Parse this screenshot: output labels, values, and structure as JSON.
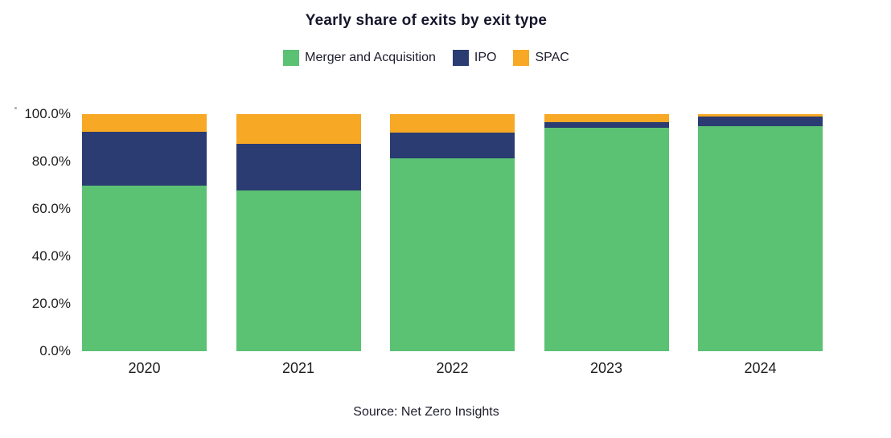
{
  "header": {
    "title": "Yearly share of exits by exit type"
  },
  "chart_data": {
    "type": "bar",
    "stacked": true,
    "unit": "percent",
    "title": "Yearly share of exits by exit type",
    "categories": [
      "2020",
      "2021",
      "2022",
      "2023",
      "2024"
    ],
    "series": [
      {
        "name": "Merger and Acquisition",
        "color": "#5bc173",
        "values": [
          69.8,
          67.7,
          81.4,
          94.1,
          94.8
        ]
      },
      {
        "name": "IPO",
        "color": "#2a3c71",
        "values": [
          22.8,
          19.8,
          10.9,
          2.4,
          4.2
        ]
      },
      {
        "name": "SPAC",
        "color": "#f7a824",
        "values": [
          7.4,
          12.5,
          7.7,
          3.5,
          1.0
        ]
      }
    ],
    "xlabel": "",
    "ylabel": "",
    "ylim": [
      0,
      100
    ],
    "yticks": [
      {
        "label": "0.0%",
        "value": 0
      },
      {
        "label": "20.0%",
        "value": 20
      },
      {
        "label": "40.0%",
        "value": 40
      },
      {
        "label": "60.0%",
        "value": 60
      },
      {
        "label": "80.0%",
        "value": 80
      },
      {
        "label": "100.0%",
        "value": 100
      }
    ],
    "grid": false,
    "legend_position": "top"
  },
  "footer": {
    "source": "Source: Net Zero Insights"
  }
}
